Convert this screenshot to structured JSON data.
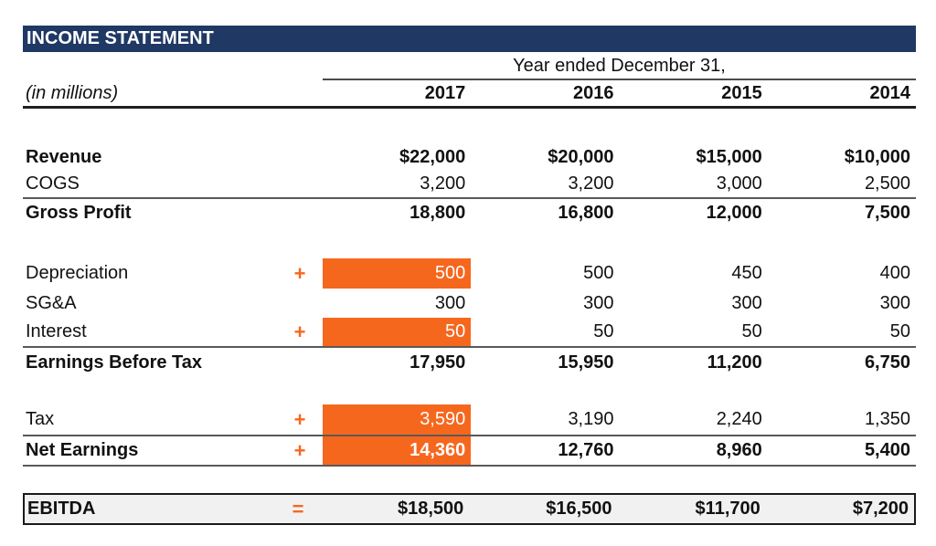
{
  "title_bar": {
    "title": "INCOME STATEMENT"
  },
  "table": {
    "units_label": "(in millions)",
    "period_header": "Year ended December 31,",
    "years": [
      "2017",
      "2016",
      "2015",
      "2014"
    ],
    "rows": [
      {
        "id": "revenue",
        "label": "Revenue",
        "op": "",
        "values": [
          "$22,000",
          "$20,000",
          "$15,000",
          "$10,000"
        ]
      },
      {
        "id": "cogs",
        "label": "COGS",
        "op": "",
        "values": [
          "3,200",
          "3,200",
          "3,000",
          "2,500"
        ]
      },
      {
        "id": "gross-profit",
        "label": "Gross Profit",
        "op": "",
        "values": [
          "18,800",
          "16,800",
          "12,000",
          "7,500"
        ]
      },
      {
        "id": "depreciation",
        "label": "Depreciation",
        "op": "+",
        "values": [
          "500",
          "500",
          "450",
          "400"
        ]
      },
      {
        "id": "sga",
        "label": "SG&A",
        "op": "",
        "values": [
          "300",
          "300",
          "300",
          "300"
        ]
      },
      {
        "id": "interest",
        "label": "Interest",
        "op": "+",
        "values": [
          "50",
          "50",
          "50",
          "50"
        ]
      },
      {
        "id": "ebt",
        "label": "Earnings Before Tax",
        "op": "",
        "values": [
          "17,950",
          "15,950",
          "11,200",
          "6,750"
        ]
      },
      {
        "id": "tax",
        "label": "Tax",
        "op": "+",
        "values": [
          "3,590",
          "3,190",
          "2,240",
          "1,350"
        ]
      },
      {
        "id": "net-earnings",
        "label": "Net Earnings",
        "op": "+",
        "values": [
          "14,360",
          "12,760",
          "8,960",
          "5,400"
        ]
      },
      {
        "id": "ebitda",
        "label": "EBITDA",
        "op": "=",
        "values": [
          "$18,500",
          "$16,500",
          "$11,700",
          "$7,200"
        ]
      }
    ]
  },
  "colors": {
    "header_navy": "#1F3864",
    "highlight_orange": "#F6671E",
    "ebitda_fill": "#F1F1F1"
  }
}
